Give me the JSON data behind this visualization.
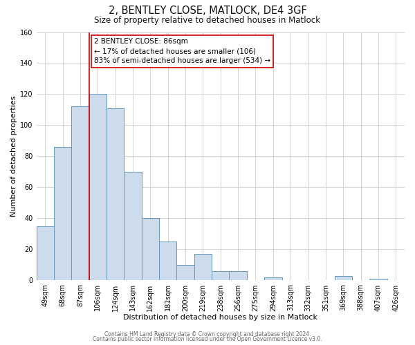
{
  "title": "2, BENTLEY CLOSE, MATLOCK, DE4 3GF",
  "subtitle": "Size of property relative to detached houses in Matlock",
  "xlabel": "Distribution of detached houses by size in Matlock",
  "ylabel": "Number of detached properties",
  "bar_labels": [
    "49sqm",
    "68sqm",
    "87sqm",
    "106sqm",
    "124sqm",
    "143sqm",
    "162sqm",
    "181sqm",
    "200sqm",
    "219sqm",
    "238sqm",
    "256sqm",
    "275sqm",
    "294sqm",
    "313sqm",
    "332sqm",
    "351sqm",
    "369sqm",
    "388sqm",
    "407sqm",
    "426sqm"
  ],
  "bar_values": [
    35,
    86,
    112,
    120,
    111,
    70,
    40,
    25,
    10,
    17,
    6,
    6,
    0,
    2,
    0,
    0,
    0,
    3,
    0,
    1,
    0
  ],
  "bar_color": "#ccdcec",
  "bar_edge_color": "#6699bb",
  "highlight_bar_index": 2,
  "highlight_line_color": "#cc0000",
  "ylim": [
    0,
    160
  ],
  "yticks": [
    0,
    20,
    40,
    60,
    80,
    100,
    120,
    140,
    160
  ],
  "annotation_title": "2 BENTLEY CLOSE: 86sqm",
  "annotation_line1": "← 17% of detached houses are smaller (106)",
  "annotation_line2": "83% of semi-detached houses are larger (534) →",
  "annotation_box_color": "#ffffff",
  "annotation_box_edge": "#cc0000",
  "footer1": "Contains HM Land Registry data © Crown copyright and database right 2024.",
  "footer2": "Contains public sector information licensed under the Open Government Licence v3.0.",
  "bg_color": "#ffffff",
  "grid_color": "#cccccc",
  "title_fontsize": 10.5,
  "subtitle_fontsize": 8.5,
  "xlabel_fontsize": 8,
  "ylabel_fontsize": 8,
  "tick_fontsize": 7,
  "annotation_fontsize": 7.5,
  "footer_fontsize": 5.5
}
